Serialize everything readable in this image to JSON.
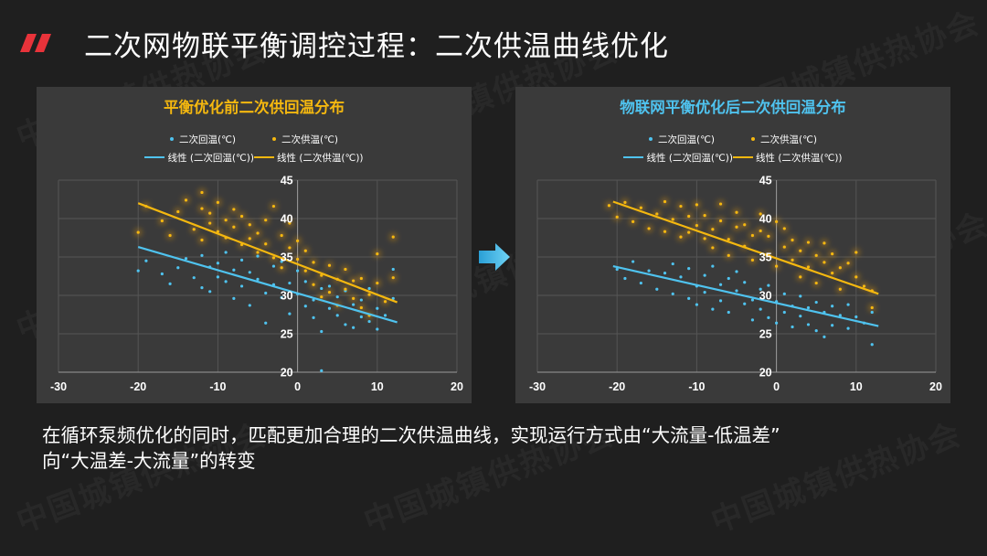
{
  "page": {
    "title": "二次网物联平衡调控过程：二次供温曲线优化",
    "caption_line1": "在循环泵频优化的同时，匹配更加合理的二次供温曲线，实现运行方式由“大流量-低温差”",
    "caption_line2": "向“大温差-大流量”的转变",
    "watermark": "中国城镇供热协会",
    "accent_color": "#e8333a"
  },
  "legend": {
    "return_label": "二次回温(℃)",
    "supply_label": "二次供温(℃)",
    "return_trend_label": "线性 (二次回温(℃))",
    "supply_trend_label": "线性 (二次供温(℃))"
  },
  "colors": {
    "return": "#4fc3ef",
    "supply": "#f5b80f",
    "left_title": "#f5b80f",
    "right_title": "#4fc3ef"
  },
  "chart_data": [
    {
      "type": "scatter",
      "title": "平衡优化前二次供回温分布",
      "xlim": [
        -30,
        20
      ],
      "ylim": [
        20,
        45
      ],
      "x_ticks": [
        -30,
        -20,
        -10,
        0,
        10,
        20
      ],
      "y_ticks": [
        20,
        25,
        30,
        35,
        40,
        45
      ],
      "grid": true,
      "legend_position": "top",
      "series": [
        {
          "name": "二次回温(℃)",
          "color": "#4fc3ef",
          "trend": {
            "name": "线性 (二次回温(℃))",
            "x": [
              -20,
              12.5
            ],
            "y": [
              36.3,
              26.5
            ]
          },
          "points": [
            [
              -20,
              33.2
            ],
            [
              -19,
              34.5
            ],
            [
              -17,
              32.8
            ],
            [
              -16,
              31.5
            ],
            [
              -15,
              33.6
            ],
            [
              -14,
              34.8
            ],
            [
              -13,
              32.3
            ],
            [
              -12,
              31
            ],
            [
              -12,
              35.2
            ],
            [
              -11,
              33.7
            ],
            [
              -11,
              30.5
            ],
            [
              -10,
              34.2
            ],
            [
              -10,
              32.4
            ],
            [
              -9,
              35.6
            ],
            [
              -9,
              31.8
            ],
            [
              -8,
              33.3
            ],
            [
              -8,
              29.6
            ],
            [
              -7,
              34.6
            ],
            [
              -7,
              31.2
            ],
            [
              -6,
              33
            ],
            [
              -6,
              28.7
            ],
            [
              -5,
              32.1
            ],
            [
              -5,
              35.1
            ],
            [
              -4,
              30.3
            ],
            [
              -4,
              26.4
            ],
            [
              -3,
              33.8
            ],
            [
              -3,
              31.4
            ],
            [
              -2,
              29.7
            ],
            [
              -2,
              34.4
            ],
            [
              -1,
              31.6
            ],
            [
              -1,
              27.6
            ],
            [
              0,
              30.2
            ],
            [
              0,
              33.2
            ],
            [
              1,
              28.6
            ],
            [
              1,
              31.8
            ],
            [
              2,
              29.4
            ],
            [
              2,
              27.1
            ],
            [
              3,
              30.9
            ],
            [
              3,
              25.3
            ],
            [
              4,
              28.3
            ],
            [
              4,
              31.2
            ],
            [
              5,
              27.4
            ],
            [
              5,
              29.8
            ],
            [
              6,
              26.2
            ],
            [
              6,
              30.6
            ],
            [
              7,
              28.8
            ],
            [
              7,
              25.8
            ],
            [
              8,
              29.4
            ],
            [
              8,
              27.2
            ],
            [
              9,
              30.9
            ],
            [
              9,
              26.6
            ],
            [
              10,
              28.3
            ],
            [
              10,
              25.6
            ],
            [
              11,
              27.4
            ],
            [
              12,
              33.4
            ],
            [
              12,
              29.6
            ],
            [
              3,
              20.2
            ]
          ]
        },
        {
          "name": "二次供温(℃)",
          "color": "#f5b80f",
          "trend": {
            "name": "线性 (二次供温(℃))",
            "x": [
              -20,
              12.5
            ],
            "y": [
              42.0,
              29.1
            ]
          },
          "points": [
            [
              -20,
              38.2
            ],
            [
              -19,
              41.6
            ],
            [
              -17,
              39.7
            ],
            [
              -16,
              37.8
            ],
            [
              -15,
              40.9
            ],
            [
              -14,
              42.4
            ],
            [
              -13,
              38.6
            ],
            [
              -12,
              41.3
            ],
            [
              -12,
              37.2
            ],
            [
              -11,
              39.4
            ],
            [
              -11,
              40.7
            ],
            [
              -10,
              38.3
            ],
            [
              -10,
              42.1
            ],
            [
              -9,
              39.8
            ],
            [
              -9,
              37.5
            ],
            [
              -8,
              41.2
            ],
            [
              -8,
              38.9
            ],
            [
              -7,
              40.3
            ],
            [
              -7,
              36.6
            ],
            [
              -6,
              39.2
            ],
            [
              -6,
              37.4
            ],
            [
              -5,
              38.1
            ],
            [
              -5,
              35.6
            ],
            [
              -4,
              39.8
            ],
            [
              -4,
              36.7
            ],
            [
              -3,
              41.6
            ],
            [
              -3,
              34.9
            ],
            [
              -2,
              37.8
            ],
            [
              -2,
              33.6
            ],
            [
              -1,
              36.2
            ],
            [
              -1,
              39.4
            ],
            [
              0,
              34.7
            ],
            [
              0,
              37.1
            ],
            [
              1,
              33.2
            ],
            [
              1,
              35.8
            ],
            [
              2,
              31.4
            ],
            [
              2,
              34.3
            ],
            [
              3,
              32.6
            ],
            [
              3,
              29.8
            ],
            [
              4,
              33.9
            ],
            [
              4,
              30.4
            ],
            [
              5,
              32.1
            ],
            [
              5,
              28.7
            ],
            [
              6,
              30.8
            ],
            [
              6,
              33.4
            ],
            [
              7,
              29.6
            ],
            [
              7,
              31.9
            ],
            [
              8,
              28.4
            ],
            [
              8,
              32.2
            ],
            [
              9,
              30.1
            ],
            [
              9,
              27.4
            ],
            [
              10,
              31.6
            ],
            [
              10,
              35.4
            ],
            [
              11,
              29.2
            ],
            [
              12,
              37.6
            ],
            [
              12,
              32.3
            ],
            [
              -12,
              43.4
            ]
          ]
        }
      ]
    },
    {
      "type": "scatter",
      "title": "物联网平衡优化后二次供回温分布",
      "xlim": [
        -30,
        20
      ],
      "ylim": [
        20,
        45
      ],
      "x_ticks": [
        -30,
        -20,
        -10,
        0,
        10,
        20
      ],
      "y_ticks": [
        20,
        25,
        30,
        35,
        40,
        45
      ],
      "grid": true,
      "legend_position": "top",
      "series": [
        {
          "name": "二次回温(℃)",
          "color": "#4fc3ef",
          "trend": {
            "name": "线性 (二次回温(℃))",
            "x": [
              -20.5,
              12.8
            ],
            "y": [
              33.8,
              26.0
            ]
          },
          "points": [
            [
              -20,
              33.4
            ],
            [
              -19,
              32.2
            ],
            [
              -18,
              34.4
            ],
            [
              -17,
              31.6
            ],
            [
              -16,
              33.2
            ],
            [
              -15,
              30.8
            ],
            [
              -14,
              32.9
            ],
            [
              -13,
              34.1
            ],
            [
              -13,
              30.2
            ],
            [
              -12,
              32.4
            ],
            [
              -11,
              29.6
            ],
            [
              -11,
              33.5
            ],
            [
              -10,
              31.2
            ],
            [
              -10,
              28.8
            ],
            [
              -9,
              32.6
            ],
            [
              -9,
              30.4
            ],
            [
              -8,
              33.8
            ],
            [
              -8,
              28.2
            ],
            [
              -7,
              31.4
            ],
            [
              -7,
              29.3
            ],
            [
              -6,
              32.2
            ],
            [
              -6,
              27.8
            ],
            [
              -5,
              30.6
            ],
            [
              -5,
              33.1
            ],
            [
              -4,
              28.9
            ],
            [
              -4,
              31.7
            ],
            [
              -3,
              29.4
            ],
            [
              -3,
              26.8
            ],
            [
              -2,
              30.8
            ],
            [
              -2,
              28.2
            ],
            [
              -1,
              31.3
            ],
            [
              -1,
              27.1
            ],
            [
              0,
              29.2
            ],
            [
              0,
              26.4
            ],
            [
              1,
              30.2
            ],
            [
              1,
              27.8
            ],
            [
              2,
              28.6
            ],
            [
              2,
              25.9
            ],
            [
              3,
              29.9
            ],
            [
              3,
              27.3
            ],
            [
              4,
              28.4
            ],
            [
              4,
              26.2
            ],
            [
              5,
              29.1
            ],
            [
              5,
              25.4
            ],
            [
              6,
              27.8
            ],
            [
              6,
              24.6
            ],
            [
              7,
              28.6
            ],
            [
              7,
              26.1
            ],
            [
              8,
              27.4
            ],
            [
              9,
              28.8
            ],
            [
              9,
              25.7
            ],
            [
              10,
              27.2
            ],
            [
              11,
              26.4
            ],
            [
              12,
              23.6
            ],
            [
              12,
              27.8
            ]
          ]
        },
        {
          "name": "二次供温(℃)",
          "color": "#f5b80f",
          "trend": {
            "name": "线性 (二次供温(℃))",
            "x": [
              -20.5,
              12.8
            ],
            "y": [
              42.2,
              30.2
            ]
          },
          "points": [
            [
              -21,
              41.7
            ],
            [
              -20,
              40.2
            ],
            [
              -19,
              42.1
            ],
            [
              -18,
              39.6
            ],
            [
              -17,
              41.4
            ],
            [
              -16,
              38.7
            ],
            [
              -15,
              40.6
            ],
            [
              -14,
              42.2
            ],
            [
              -14,
              38.3
            ],
            [
              -13,
              39.9
            ],
            [
              -12,
              41.6
            ],
            [
              -12,
              37.6
            ],
            [
              -11,
              40.3
            ],
            [
              -11,
              38.2
            ],
            [
              -10,
              39.1
            ],
            [
              -10,
              41.8
            ],
            [
              -9,
              37.4
            ],
            [
              -9,
              40.4
            ],
            [
              -8,
              38.6
            ],
            [
              -8,
              36.2
            ],
            [
              -7,
              39.7
            ],
            [
              -7,
              41.9
            ],
            [
              -6,
              37.3
            ],
            [
              -6,
              35.2
            ],
            [
              -5,
              38.9
            ],
            [
              -5,
              40.8
            ],
            [
              -4,
              36.4
            ],
            [
              -4,
              39.2
            ],
            [
              -3,
              37.8
            ],
            [
              -3,
              34.6
            ],
            [
              -2,
              38.4
            ],
            [
              -2,
              40.6
            ],
            [
              -1,
              35.3
            ],
            [
              -1,
              37.7
            ],
            [
              0,
              39.6
            ],
            [
              0,
              33.8
            ],
            [
              1,
              36.3
            ],
            [
              1,
              38.7
            ],
            [
              2,
              34.6
            ],
            [
              2,
              37.2
            ],
            [
              3,
              35.8
            ],
            [
              3,
              32.4
            ],
            [
              4,
              36.9
            ],
            [
              4,
              33.7
            ],
            [
              5,
              35.2
            ],
            [
              5,
              31.6
            ],
            [
              6,
              34.3
            ],
            [
              6,
              36.8
            ],
            [
              7,
              32.9
            ],
            [
              7,
              35.4
            ],
            [
              8,
              33.6
            ],
            [
              8,
              30.8
            ],
            [
              9,
              34.2
            ],
            [
              10,
              32.4
            ],
            [
              10,
              35.6
            ],
            [
              11,
              31.2
            ],
            [
              12,
              28.4
            ],
            [
              12,
              30.6
            ]
          ]
        }
      ]
    }
  ]
}
